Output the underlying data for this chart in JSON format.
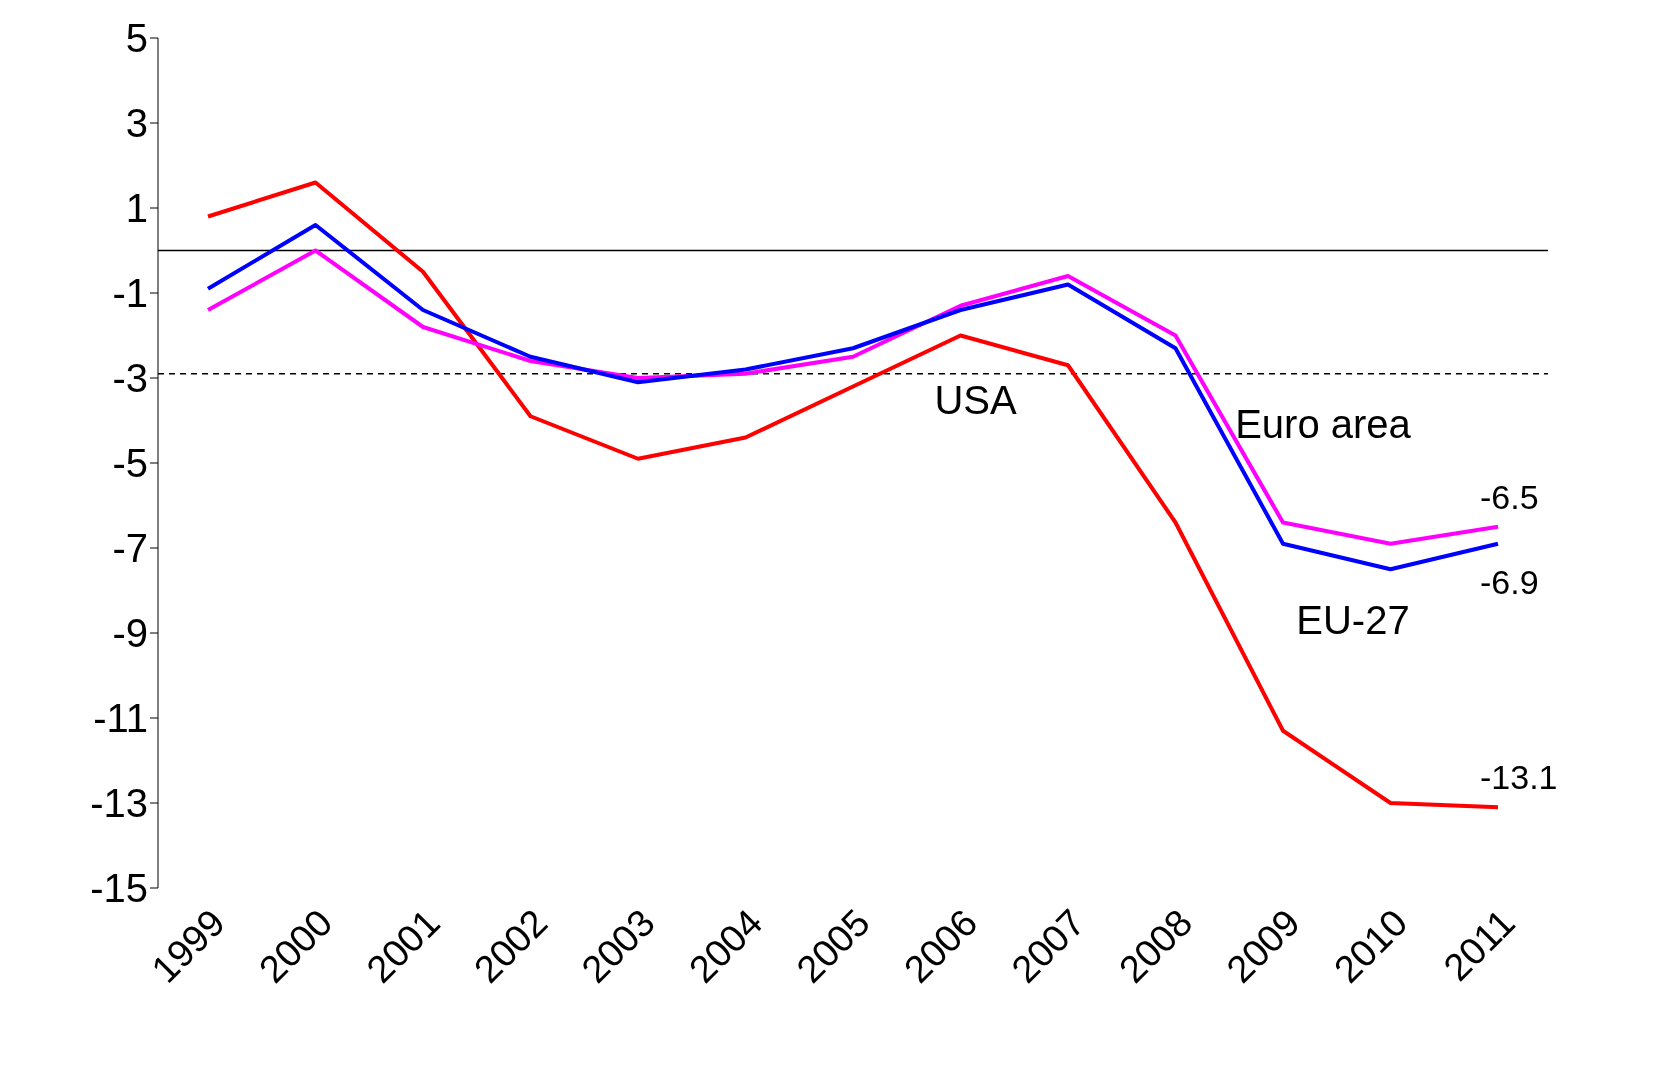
{
  "chart_data": {
    "type": "line",
    "categories": [
      "1999",
      "2000",
      "2001",
      "2002",
      "2003",
      "2004",
      "2005",
      "2006",
      "2007",
      "2008",
      "2009",
      "2010",
      "2011"
    ],
    "series": [
      {
        "name": "USA",
        "color": "#ff0000",
        "values": [
          0.8,
          1.6,
          -0.5,
          -3.9,
          -4.9,
          -4.4,
          -3.2,
          -2.0,
          -2.7,
          -6.4,
          -11.3,
          -13.0,
          -13.1
        ],
        "value_labels": [
          null,
          null,
          null,
          null,
          null,
          null,
          null,
          null,
          null,
          null,
          null,
          null,
          "-13.1"
        ]
      },
      {
        "name": "Euro area",
        "color": "#ff00ff",
        "values": [
          -1.4,
          0.0,
          -1.8,
          -2.6,
          -3.0,
          -2.9,
          -2.5,
          -1.3,
          -0.6,
          -2.0,
          -6.4,
          -6.9,
          -6.5
        ],
        "value_labels": [
          null,
          null,
          null,
          null,
          null,
          null,
          null,
          null,
          null,
          null,
          null,
          null,
          "-6.5"
        ]
      },
      {
        "name": "EU-27",
        "color": "#0000ff",
        "values": [
          -0.9,
          0.6,
          -1.4,
          -2.5,
          -3.1,
          -2.8,
          -2.3,
          -1.4,
          -0.8,
          -2.3,
          -6.9,
          -7.5,
          -6.9
        ],
        "value_labels": [
          null,
          null,
          null,
          null,
          null,
          null,
          null,
          null,
          null,
          null,
          null,
          null,
          "-6.9"
        ]
      }
    ],
    "ylim": [
      -15,
      5
    ],
    "yticks": [
      -15,
      -13,
      -11,
      -9,
      -7,
      -5,
      -3,
      -1,
      1,
      3,
      5
    ],
    "ref_lines": [
      {
        "axis": "y",
        "value": -2.9,
        "color": "#000000",
        "line_style": "dashed"
      }
    ],
    "grid": false,
    "marker": "none",
    "line_style": "solid"
  }
}
